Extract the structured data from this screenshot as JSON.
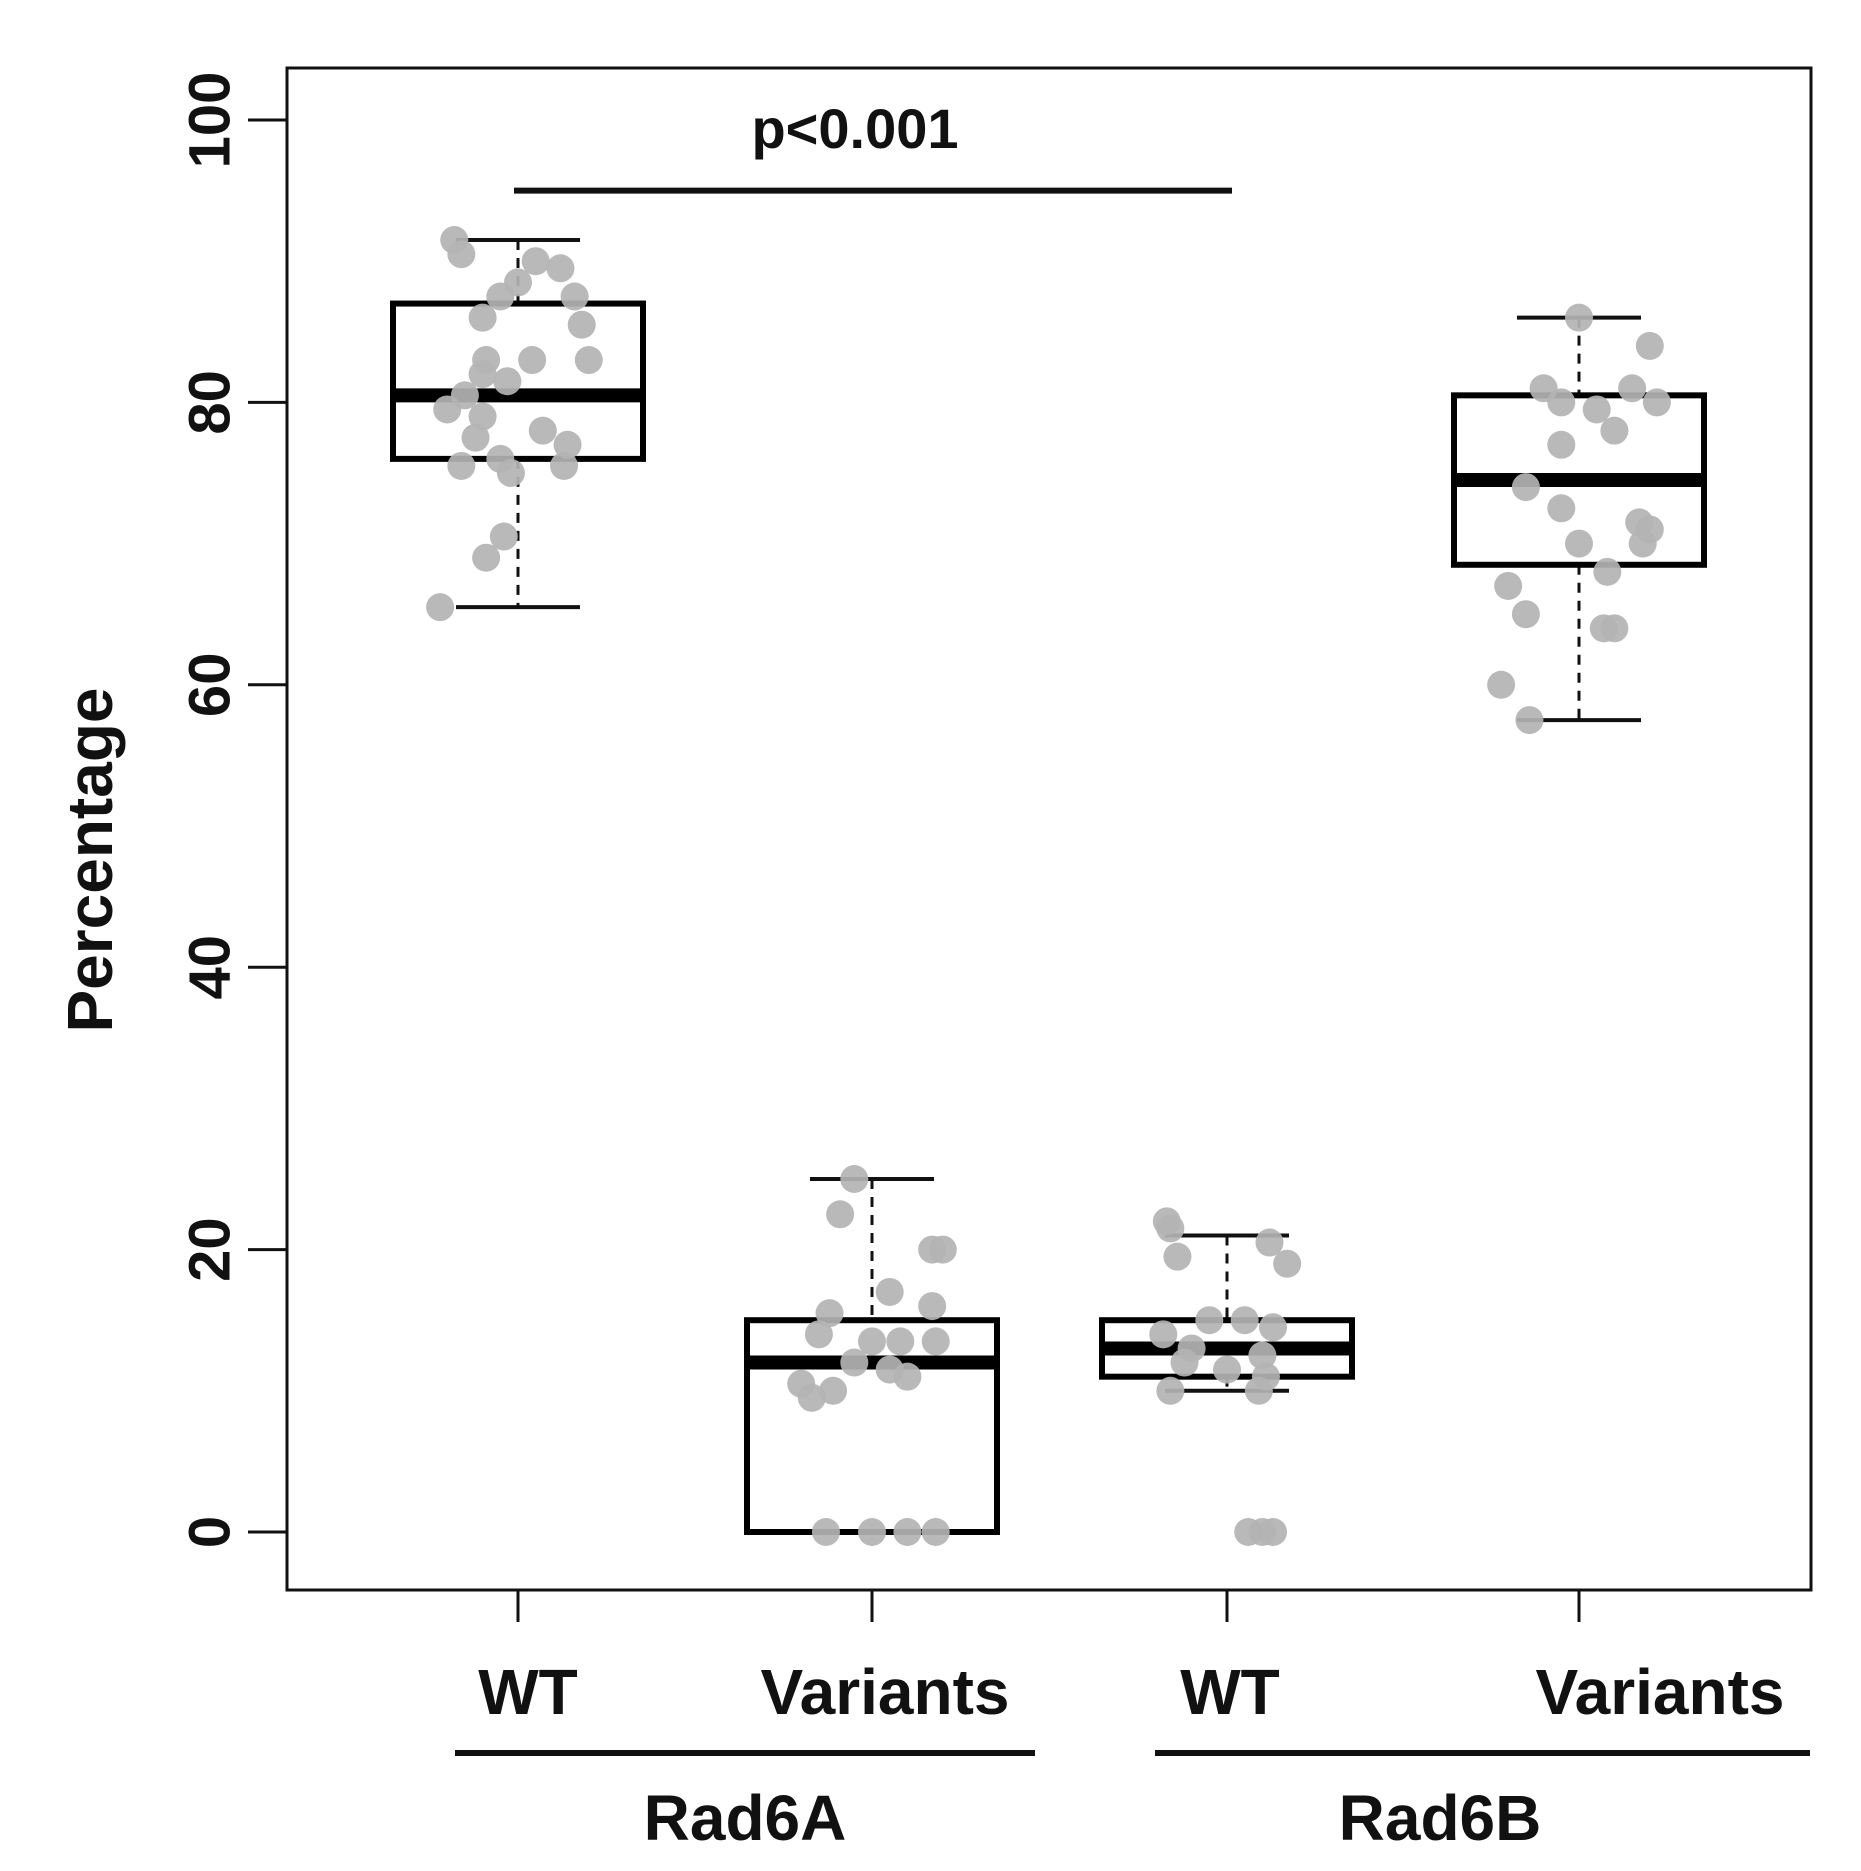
{
  "chart_data": {
    "type": "boxplot",
    "ylabel": "Percentage",
    "ylim": [
      -8,
      108
    ],
    "yticks": [
      "0",
      "20",
      "40",
      "60",
      "80",
      "100"
    ],
    "categories": [
      "WT",
      "Variants",
      "WT",
      "Variants"
    ],
    "groups": [
      {
        "name": "Rad6A",
        "members": [
          0,
          1
        ]
      },
      {
        "name": "Rad6B",
        "members": [
          2,
          3
        ]
      }
    ],
    "annotation": {
      "text": "p<0.001",
      "from": 0,
      "to": 2,
      "y": 95
    },
    "colors": {
      "box": "#000000",
      "points": "#b3b3b3"
    },
    "series": [
      {
        "name": "Rad6A WT",
        "whisker_low": 65.5,
        "q1": 76,
        "median": 80.5,
        "q3": 87,
        "whisker_high": 91.5,
        "points": [
          [
            -0.18,
            91.5
          ],
          [
            -0.16,
            90.5
          ],
          [
            0.05,
            90
          ],
          [
            0.12,
            89.5
          ],
          [
            0.0,
            88.5
          ],
          [
            -0.05,
            87.5
          ],
          [
            0.16,
            87.5
          ],
          [
            -0.1,
            86
          ],
          [
            0.18,
            85.5
          ],
          [
            -0.09,
            83
          ],
          [
            0.04,
            83
          ],
          [
            0.2,
            83
          ],
          [
            -0.1,
            82
          ],
          [
            -0.03,
            81.5
          ],
          [
            -0.15,
            80.5
          ],
          [
            -0.2,
            79.5
          ],
          [
            -0.1,
            79
          ],
          [
            0.07,
            78
          ],
          [
            -0.12,
            77.5
          ],
          [
            0.14,
            77
          ],
          [
            -0.05,
            76
          ],
          [
            -0.16,
            75.5
          ],
          [
            0.13,
            75.5
          ],
          [
            -0.02,
            75
          ],
          [
            -0.04,
            70.5
          ],
          [
            -0.09,
            69
          ],
          [
            -0.22,
            65.5
          ]
        ]
      },
      {
        "name": "Rad6A Variants",
        "whisker_low": 0,
        "q1": 0,
        "median": 12,
        "q3": 15,
        "whisker_high": 25,
        "points": [
          [
            -0.05,
            25
          ],
          [
            -0.09,
            22.5
          ],
          [
            0.17,
            20
          ],
          [
            0.2,
            20
          ],
          [
            0.05,
            17
          ],
          [
            0.17,
            16
          ],
          [
            -0.12,
            15.5
          ],
          [
            -0.15,
            14
          ],
          [
            0.0,
            13.5
          ],
          [
            0.08,
            13.5
          ],
          [
            0.18,
            13.5
          ],
          [
            -0.05,
            12
          ],
          [
            0.05,
            11.5
          ],
          [
            0.1,
            11
          ],
          [
            -0.2,
            10.5
          ],
          [
            -0.11,
            10
          ],
          [
            -0.17,
            9.5
          ],
          [
            -0.13,
            0
          ],
          [
            0.0,
            0
          ],
          [
            0.1,
            0
          ],
          [
            0.18,
            0
          ]
        ]
      },
      {
        "name": "Rad6B WT",
        "whisker_low": 10,
        "q1": 11,
        "median": 13,
        "q3": 15,
        "whisker_high": 21,
        "points": [
          [
            -0.17,
            22
          ],
          [
            -0.16,
            21.5
          ],
          [
            -0.14,
            19.5
          ],
          [
            0.17,
            19
          ],
          [
            0.12,
            20.5
          ],
          [
            -0.05,
            15
          ],
          [
            0.05,
            15
          ],
          [
            0.13,
            14.5
          ],
          [
            -0.18,
            14
          ],
          [
            -0.1,
            13
          ],
          [
            0.1,
            12.5
          ],
          [
            -0.12,
            12
          ],
          [
            0.0,
            11.5
          ],
          [
            0.11,
            11
          ],
          [
            -0.16,
            10
          ],
          [
            0.09,
            10
          ],
          [
            0.06,
            0
          ],
          [
            0.1,
            0
          ],
          [
            0.13,
            0
          ]
        ]
      },
      {
        "name": "Rad6B Variants",
        "whisker_low": 57.5,
        "q1": 68.5,
        "median": 74.5,
        "q3": 80.5,
        "whisker_high": 86,
        "points": [
          [
            0.0,
            86
          ],
          [
            0.2,
            84
          ],
          [
            -0.1,
            81
          ],
          [
            0.15,
            81
          ],
          [
            -0.05,
            80
          ],
          [
            0.22,
            80
          ],
          [
            0.05,
            79.5
          ],
          [
            0.1,
            78
          ],
          [
            -0.05,
            77
          ],
          [
            -0.15,
            74
          ],
          [
            -0.05,
            72.5
          ],
          [
            0.17,
            71.5
          ],
          [
            0.2,
            71
          ],
          [
            0.0,
            70
          ],
          [
            0.18,
            70
          ],
          [
            0.08,
            68
          ],
          [
            -0.2,
            67
          ],
          [
            -0.15,
            65
          ],
          [
            0.07,
            64
          ],
          [
            0.1,
            64
          ],
          [
            -0.22,
            60
          ],
          [
            -0.14,
            57.5
          ]
        ]
      }
    ]
  }
}
